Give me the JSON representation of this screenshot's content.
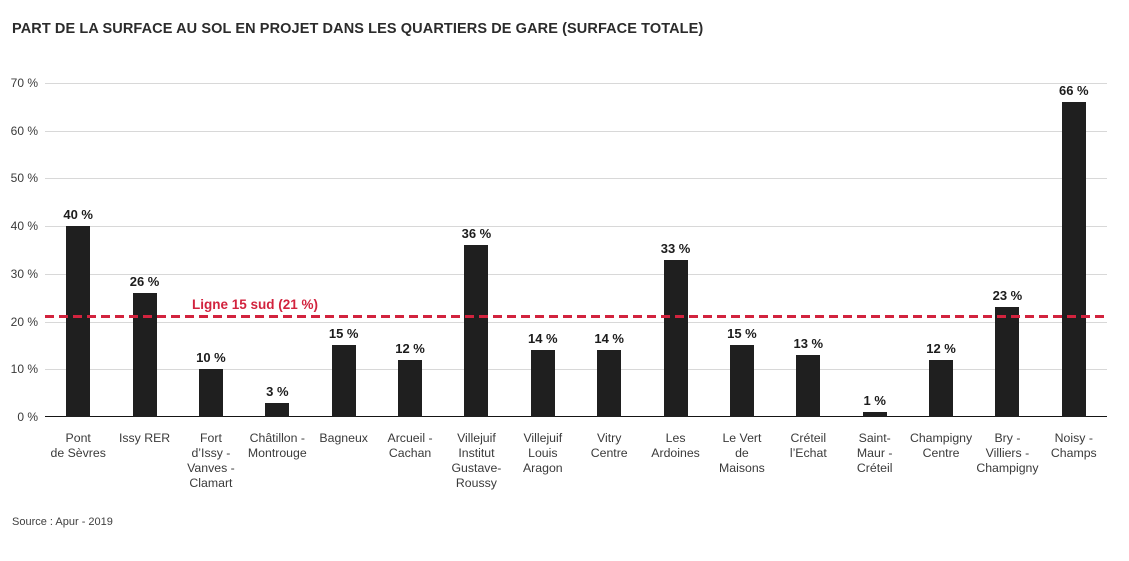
{
  "page": {
    "title": "PART DE LA SURFACE AU SOL EN PROJET DANS LES QUARTIERS DE GARE (SURFACE TOTALE)",
    "source": "Source : Apur - 2019"
  },
  "colors": {
    "bar": "#1f1f1f",
    "grid": "#d8d8d8",
    "axis": "#151515",
    "reference": "#d2233e",
    "title_text": "#2b2b2b",
    "tick_text": "#3a3a3a",
    "value_text": "#1c1c1c"
  },
  "chart_data": {
    "type": "bar",
    "title": "PART DE LA SURFACE AU SOL EN PROJET DANS LES QUARTIERS DE GARE (SURFACE TOTALE)",
    "categories": [
      "Pont\nde Sèvres",
      "Issy RER",
      "Fort\nd’Issy -\nVanves -\nClamart",
      "Châtillon -\nMontrouge",
      "Bagneux",
      "Arcueil -\nCachan",
      "Villejuif\nInstitut\nGustave-\nRoussy",
      "Villejuif\nLouis\nAragon",
      "Vitry\nCentre",
      "Les\nArdoines",
      "Le Vert\nde\nMaisons",
      "Créteil\nl’Echat",
      "Saint-\nMaur -\nCréteil",
      "Champigny\nCentre",
      "Bry -\nVilliers -\nChampigny",
      "Noisy -\nChamps"
    ],
    "values": [
      40,
      26,
      10,
      3,
      15,
      12,
      36,
      14,
      14,
      33,
      15,
      13,
      1,
      12,
      23,
      66
    ],
    "value_labels": [
      "40 %",
      "26 %",
      "10 %",
      "3 %",
      "15 %",
      "12 %",
      "36 %",
      "14 %",
      "14 %",
      "33 %",
      "15 %",
      "13 %",
      "1 %",
      "12 %",
      "23 %",
      "66 %"
    ],
    "xlabel": "",
    "ylabel": "",
    "ylim": [
      0,
      70
    ],
    "yticks": [
      0,
      10,
      20,
      30,
      40,
      50,
      60,
      70
    ],
    "ytick_labels": [
      "0 %",
      "10 %",
      "20 %",
      "30 %",
      "40 %",
      "50 %",
      "60 %",
      "70 %"
    ],
    "grid": true,
    "legend": "none",
    "reference_line": {
      "value": 21,
      "label": "Ligne 15 sud (21 %)",
      "style": "dashed",
      "color": "#d2233e"
    },
    "source": "Source : Apur - 2019"
  }
}
